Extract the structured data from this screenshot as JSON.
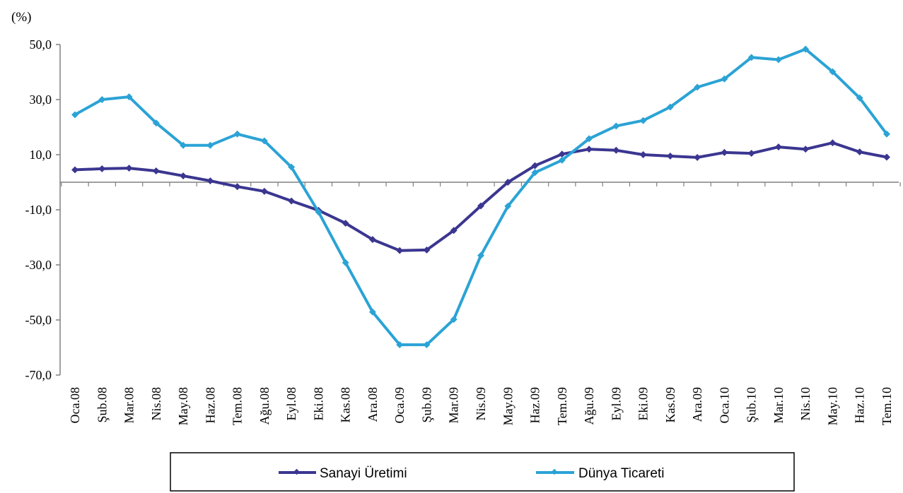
{
  "chart_data": {
    "type": "line",
    "unit_label": "(%)",
    "x": [
      "Oca.08",
      "Şub.08",
      "Mar.08",
      "Nis.08",
      "May.08",
      "Haz.08",
      "Tem.08",
      "Ağu.08",
      "Eyl.08",
      "Eki.08",
      "Kas.08",
      "Ara.08",
      "Oca.09",
      "Şub.09",
      "Mar.09",
      "Nis.09",
      "May.09",
      "Haz.09",
      "Tem.09",
      "Ağu.09",
      "Eyl.09",
      "Eki.09",
      "Kas.09",
      "Ara.09",
      "Oca.10",
      "Şub.10",
      "Mar.10",
      "Nis.10",
      "May.10",
      "Haz.10",
      "Tem.10"
    ],
    "yticks": [
      "50,0",
      "30,0",
      "10,0",
      "-10,0",
      "-30,0",
      "-50,0",
      "-70,0"
    ],
    "ylim": [
      -70,
      50
    ],
    "series": [
      {
        "name": "Sanayi Üretimi",
        "color": "#3b3690",
        "values": [
          4.5,
          4.9,
          5.1,
          4.1,
          2.3,
          0.5,
          -1.6,
          -3.3,
          -6.8,
          -10.2,
          -14.9,
          -20.8,
          -24.8,
          -24.6,
          -17.5,
          -8.6,
          0.0,
          6.0,
          10.2,
          12.0,
          11.6,
          10.0,
          9.5,
          9.0,
          10.8,
          10.5,
          12.8,
          12.0,
          14.3,
          11.0,
          9.1
        ]
      },
      {
        "name": "Dünya Ticareti",
        "color": "#2ba3d5",
        "values": [
          24.5,
          30.0,
          31.0,
          21.5,
          13.4,
          13.4,
          17.5,
          15.0,
          5.5,
          -10.8,
          -29.2,
          -47.1,
          -59.0,
          -59.0,
          -49.8,
          -26.6,
          -8.7,
          3.5,
          8.0,
          15.8,
          20.4,
          22.4,
          27.3,
          34.5,
          37.5,
          45.3,
          44.5,
          48.3,
          40.1,
          30.6,
          17.5
        ]
      }
    ],
    "legend_position": "bottom",
    "grid": false
  }
}
